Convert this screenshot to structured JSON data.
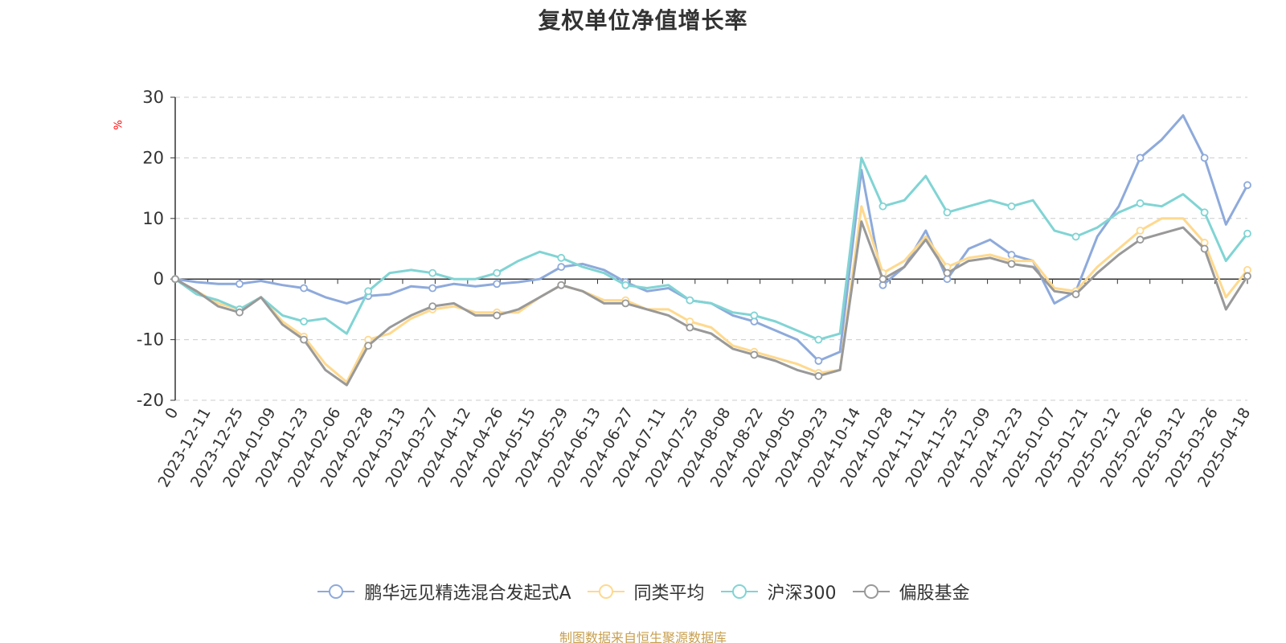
{
  "chart_data": {
    "type": "line",
    "title": "复权单位净值增长率",
    "ylabel": "%",
    "ylim": [
      -20,
      30
    ],
    "y_ticks": [
      "30",
      "20",
      "10",
      "0",
      "-10",
      "-20"
    ],
    "x_ticks": [
      "0",
      "2023-12-11",
      "2023-12-25",
      "2024-01-09",
      "2024-01-23",
      "2024-02-06",
      "2024-02-28",
      "2024-03-13",
      "2024-03-27",
      "2024-04-12",
      "2024-04-26",
      "2024-05-15",
      "2024-05-29",
      "2024-06-13",
      "2024-06-27",
      "2024-07-11",
      "2024-07-25",
      "2024-08-08",
      "2024-08-22",
      "2024-09-05",
      "2024-09-23",
      "2024-10-14",
      "2024-10-28",
      "2024-11-11",
      "2024-11-25",
      "2024-12-09",
      "2024-12-23",
      "2025-01-07",
      "2025-01-21",
      "2025-02-12",
      "2025-02-26",
      "2025-03-12",
      "2025-03-26",
      "2025-04-18"
    ],
    "grid": "dashed horizontal",
    "legend_position": "bottom",
    "series": [
      {
        "name": "鹏华远见精选混合发起式A",
        "color": "#8eaadb",
        "values": [
          0,
          -0.5,
          -0.8,
          -0.8,
          -0.3,
          -1.0,
          -1.5,
          -3.0,
          -4.0,
          -2.8,
          -2.5,
          -1.2,
          -1.5,
          -0.8,
          -1.2,
          -0.8,
          -0.5,
          0,
          2.0,
          2.5,
          1.5,
          -0.5,
          -2.0,
          -1.5,
          -3.5,
          -4.0,
          -6.0,
          -7.0,
          -8.5,
          -10.0,
          -13.5,
          -12.0,
          18.0,
          -1.0,
          2.0,
          8.0,
          0,
          5.0,
          6.5,
          4.0,
          3.0,
          -4.0,
          -2.0,
          7.0,
          12.0,
          20.0,
          23.0,
          27.0,
          20.0,
          9.0,
          15.5
        ]
      },
      {
        "name": "同类平均",
        "color": "#ffd98e",
        "values": [
          0,
          -2.0,
          -4.0,
          -5.0,
          -3.0,
          -7.0,
          -9.5,
          -14.0,
          -17.0,
          -10.0,
          -9.0,
          -6.5,
          -5.0,
          -4.5,
          -5.5,
          -5.5,
          -5.5,
          -3.0,
          -1.0,
          -2.0,
          -3.5,
          -3.5,
          -5.0,
          -5.0,
          -7.0,
          -8.0,
          -11.0,
          -12.0,
          -13.0,
          -14.0,
          -15.5,
          -15.0,
          12.0,
          1.0,
          3.0,
          7.0,
          2.0,
          3.5,
          4.0,
          3.0,
          3.0,
          -1.5,
          -2.0,
          2.0,
          5.0,
          8.0,
          10.0,
          10.0,
          6.0,
          -3.0,
          1.5
        ]
      },
      {
        "name": "沪深300",
        "color": "#81d4d4",
        "values": [
          0,
          -2.5,
          -3.5,
          -5.0,
          -3.0,
          -6.0,
          -7.0,
          -6.5,
          -9.0,
          -2.0,
          1.0,
          1.5,
          1.0,
          0,
          0,
          1.0,
          3.0,
          4.5,
          3.5,
          2.0,
          1.0,
          -1.0,
          -1.5,
          -1.0,
          -3.5,
          -4.0,
          -5.5,
          -6.0,
          -7.0,
          -8.5,
          -10.0,
          -9.0,
          20.0,
          12.0,
          13.0,
          17.0,
          11.0,
          12.0,
          13.0,
          12.0,
          13.0,
          8.0,
          7.0,
          8.5,
          11.0,
          12.5,
          12.0,
          14.0,
          11.0,
          3.0,
          7.5
        ]
      },
      {
        "name": "偏股基金",
        "color": "#999999",
        "values": [
          0,
          -2.0,
          -4.5,
          -5.5,
          -3.0,
          -7.5,
          -10.0,
          -15.0,
          -17.5,
          -11.0,
          -8.0,
          -6.0,
          -4.5,
          -4.0,
          -6.0,
          -6.0,
          -5.0,
          -3.0,
          -1.0,
          -2.0,
          -4.0,
          -4.0,
          -5.0,
          -6.0,
          -8.0,
          -9.0,
          -11.5,
          -12.5,
          -13.5,
          -15.0,
          -16.0,
          -15.0,
          9.5,
          0,
          2.0,
          6.5,
          1.0,
          3.0,
          3.5,
          2.5,
          2.0,
          -2.0,
          -2.5,
          1.0,
          4.0,
          6.5,
          7.5,
          8.5,
          5.0,
          -5.0,
          0.5
        ]
      }
    ]
  },
  "source_text": "制图数据来自恒生聚源数据库"
}
